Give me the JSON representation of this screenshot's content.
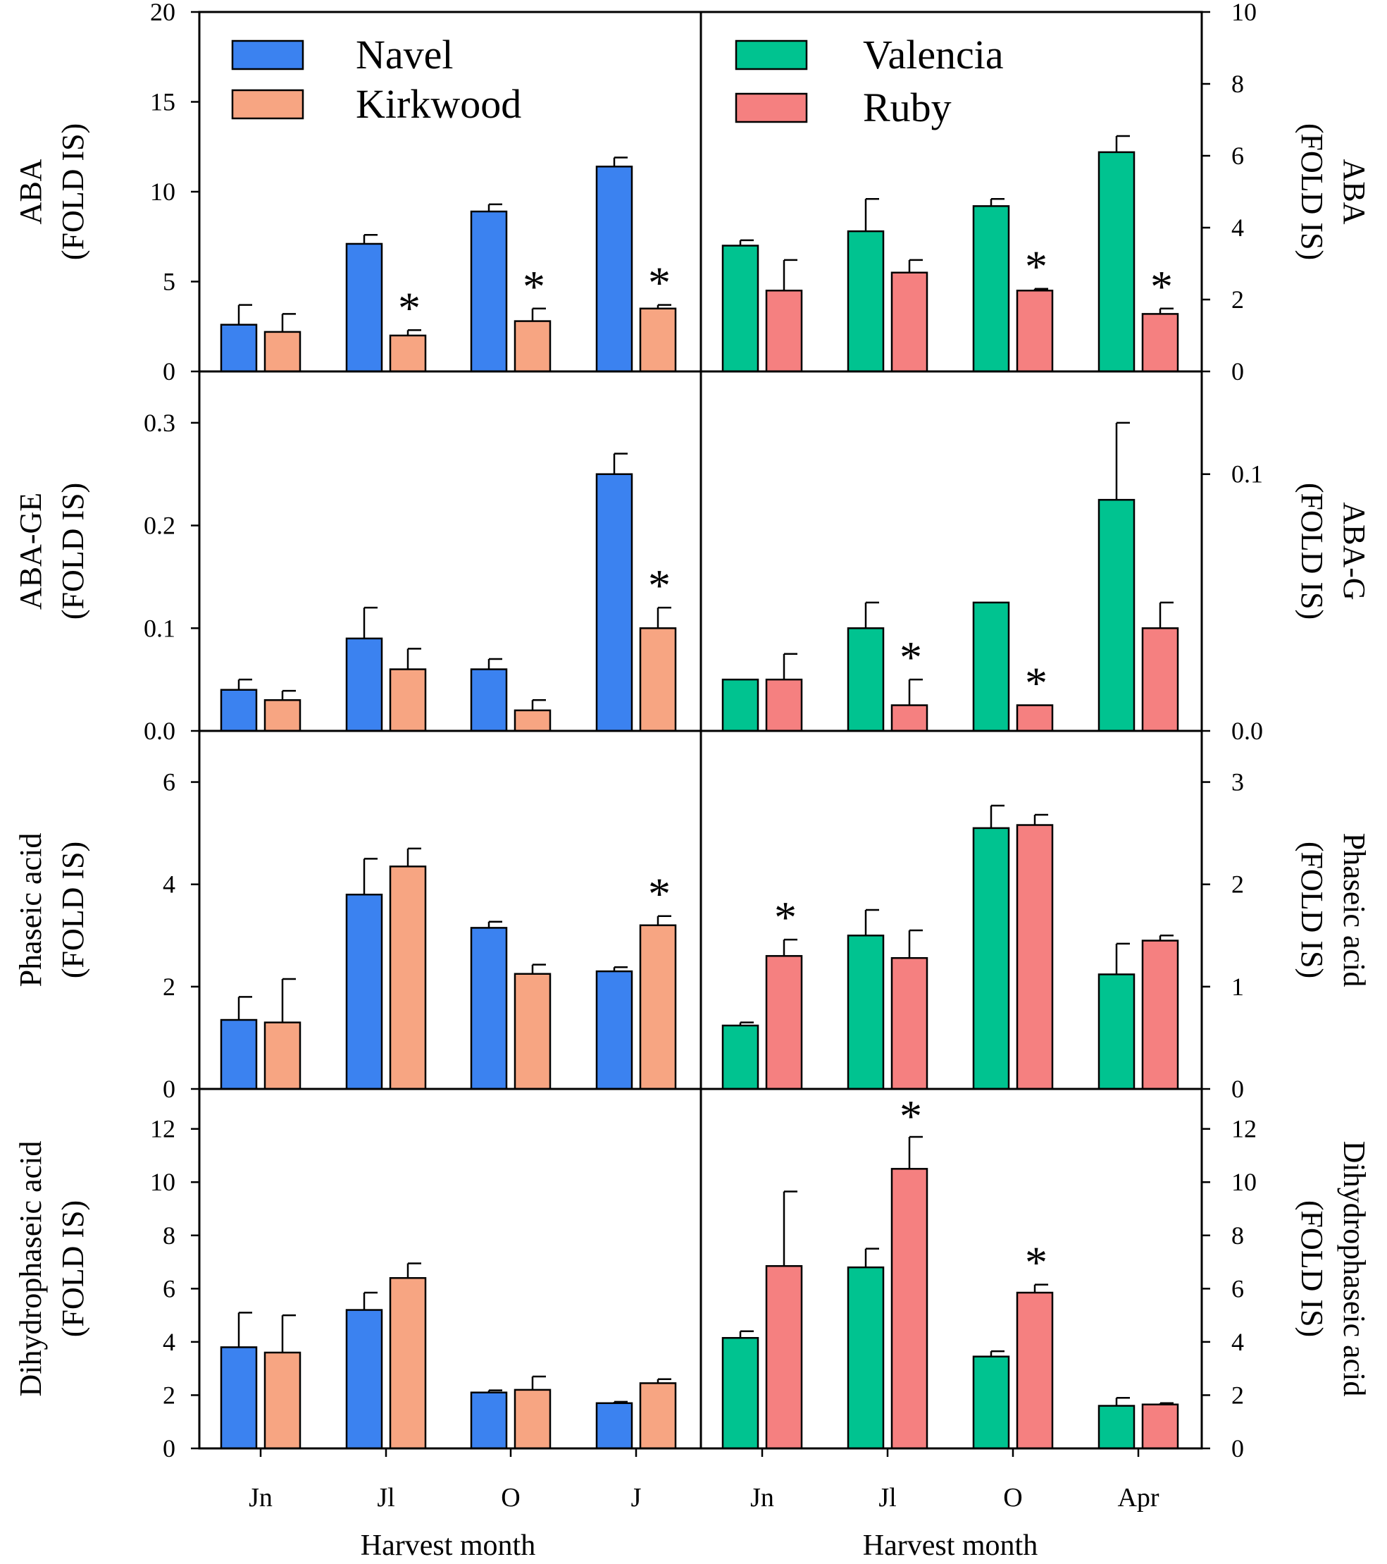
{
  "colors": {
    "Navel": "#3b82f0",
    "Kirkwood": "#f7a582",
    "Valencia": "#00c390",
    "Ruby": "#f58080",
    "axis": "#000000"
  },
  "chart_data": [
    {
      "type": "bar",
      "panel": "left",
      "row": 0,
      "ylabel": [
        "ABA",
        "(FOLD IS)"
      ],
      "ylim": [
        0,
        20
      ],
      "ticks": [
        0,
        5,
        10,
        15,
        20
      ],
      "tick_labels": [
        "0",
        "5",
        "10",
        "15",
        "20"
      ],
      "categories": [
        "Jn",
        "Jl",
        "O",
        "J"
      ],
      "series": [
        {
          "name": "Navel",
          "values": [
            2.6,
            7.1,
            8.9,
            11.4
          ],
          "errors": [
            1.1,
            0.5,
            0.4,
            0.5
          ]
        },
        {
          "name": "Kirkwood",
          "values": [
            2.2,
            2.0,
            2.8,
            3.5
          ],
          "errors": [
            1.0,
            0.3,
            0.7,
            0.2
          ]
        }
      ],
      "significance": [
        false,
        true,
        true,
        true
      ]
    },
    {
      "type": "bar",
      "panel": "right",
      "row": 0,
      "ylabel": [
        "ABA",
        "(FOLD IS)"
      ],
      "ylim": [
        0,
        10
      ],
      "ticks": [
        0,
        2,
        4,
        6,
        8,
        10
      ],
      "tick_labels": [
        "0",
        "2",
        "4",
        "6",
        "8",
        "10"
      ],
      "categories": [
        "Jn",
        "Jl",
        "O",
        "Apr"
      ],
      "series": [
        {
          "name": "Valencia",
          "values": [
            3.5,
            3.9,
            4.6,
            6.1
          ],
          "errors": [
            0.15,
            0.9,
            0.2,
            0.45
          ]
        },
        {
          "name": "Ruby",
          "values": [
            2.25,
            2.75,
            2.25,
            1.6
          ],
          "errors": [
            0.85,
            0.35,
            0.05,
            0.15
          ]
        }
      ],
      "significance": [
        false,
        false,
        true,
        true
      ]
    },
    {
      "type": "bar",
      "panel": "left",
      "row": 1,
      "ylabel": [
        "ABA-GE",
        "(FOLD IS)"
      ],
      "ylim": [
        0,
        0.35
      ],
      "ticks": [
        0,
        0.1,
        0.2,
        0.3
      ],
      "tick_labels": [
        "0.0",
        "0.1",
        "0.2",
        "0.3"
      ],
      "categories": [
        "Jn",
        "Jl",
        "O",
        "J"
      ],
      "series": [
        {
          "name": "Navel",
          "values": [
            0.04,
            0.09,
            0.06,
            0.25
          ],
          "errors": [
            0.01,
            0.03,
            0.01,
            0.02
          ]
        },
        {
          "name": "Kirkwood",
          "values": [
            0.03,
            0.06,
            0.02,
            0.1
          ],
          "errors": [
            0.009,
            0.02,
            0.01,
            0.02
          ]
        }
      ],
      "significance": [
        false,
        false,
        false,
        true
      ]
    },
    {
      "type": "bar",
      "panel": "right",
      "row": 1,
      "ylabel": [
        "ABA-G",
        "(FOLD IS)"
      ],
      "ylim": [
        0,
        0.14
      ],
      "ticks": [
        0,
        0.1
      ],
      "tick_labels": [
        "0.0",
        "0.1"
      ],
      "categories": [
        "Jn",
        "Jl",
        "O",
        "Apr"
      ],
      "series": [
        {
          "name": "Valencia",
          "values": [
            0.02,
            0.04,
            0.05,
            0.09
          ],
          "errors": [
            0,
            0.01,
            0,
            0.03
          ]
        },
        {
          "name": "Ruby",
          "values": [
            0.02,
            0.01,
            0.01,
            0.04
          ],
          "errors": [
            0.01,
            0.01,
            0,
            0.01
          ]
        }
      ],
      "significance": [
        false,
        true,
        true,
        false
      ]
    },
    {
      "type": "bar",
      "panel": "left",
      "row": 2,
      "ylabel": [
        "Phaseic acid",
        "(FOLD IS)"
      ],
      "ylim": [
        0,
        7
      ],
      "ticks": [
        0,
        2,
        4,
        6
      ],
      "tick_labels": [
        "0",
        "2",
        "4",
        "6"
      ],
      "categories": [
        "Jn",
        "Jl",
        "O",
        "J"
      ],
      "series": [
        {
          "name": "Navel",
          "values": [
            1.35,
            3.8,
            3.15,
            2.3
          ],
          "errors": [
            0.45,
            0.7,
            0.12,
            0.08
          ]
        },
        {
          "name": "Kirkwood",
          "values": [
            1.3,
            4.35,
            2.25,
            3.2
          ],
          "errors": [
            0.85,
            0.35,
            0.18,
            0.18
          ]
        }
      ],
      "significance": [
        false,
        false,
        false,
        true
      ]
    },
    {
      "type": "bar",
      "panel": "right",
      "row": 2,
      "ylabel": [
        "Phaseic acid",
        "(FOLD IS)"
      ],
      "ylim": [
        0,
        3.5
      ],
      "ticks": [
        0,
        1,
        2,
        3
      ],
      "tick_labels": [
        "0",
        "1",
        "2",
        "3"
      ],
      "categories": [
        "Jn",
        "Jl",
        "O",
        "Apr"
      ],
      "series": [
        {
          "name": "Valencia",
          "values": [
            0.62,
            1.5,
            2.55,
            1.12
          ],
          "errors": [
            0.03,
            0.25,
            0.22,
            0.3
          ]
        },
        {
          "name": "Ruby",
          "values": [
            1.3,
            1.28,
            2.58,
            1.45
          ],
          "errors": [
            0.16,
            0.27,
            0.1,
            0.05
          ]
        }
      ],
      "significance": [
        true,
        false,
        false,
        false
      ]
    },
    {
      "type": "bar",
      "panel": "left",
      "row": 3,
      "ylabel": [
        "Dihydrophaseic acid",
        "(FOLD IS)"
      ],
      "ylim": [
        0,
        13.5
      ],
      "ticks": [
        0,
        2,
        4,
        6,
        8,
        10,
        12
      ],
      "tick_labels": [
        "0",
        "2",
        "4",
        "6",
        "8",
        "10",
        "12"
      ],
      "categories": [
        "Jn",
        "Jl",
        "O",
        "J"
      ],
      "series": [
        {
          "name": "Navel",
          "values": [
            3.8,
            5.2,
            2.1,
            1.7
          ],
          "errors": [
            1.3,
            0.65,
            0.08,
            0.05
          ]
        },
        {
          "name": "Kirkwood",
          "values": [
            3.6,
            6.4,
            2.2,
            2.45
          ],
          "errors": [
            1.4,
            0.55,
            0.5,
            0.15
          ]
        }
      ],
      "significance": [
        false,
        false,
        false,
        false
      ]
    },
    {
      "type": "bar",
      "panel": "right",
      "row": 3,
      "ylabel": [
        "Dihydrophaseic acid",
        "(FOLD IS)"
      ],
      "ylim": [
        0,
        13.5
      ],
      "ticks": [
        0,
        2,
        4,
        6,
        8,
        10,
        12
      ],
      "tick_labels": [
        "0",
        "2",
        "4",
        "6",
        "8",
        "10",
        "12"
      ],
      "categories": [
        "Jn",
        "Jl",
        "O",
        "Apr"
      ],
      "series": [
        {
          "name": "Valencia",
          "values": [
            4.15,
            6.8,
            3.45,
            1.6
          ],
          "errors": [
            0.25,
            0.7,
            0.2,
            0.3
          ]
        },
        {
          "name": "Ruby",
          "values": [
            6.85,
            10.5,
            5.85,
            1.65
          ],
          "errors": [
            2.8,
            1.2,
            0.3,
            0.05
          ]
        }
      ],
      "significance": [
        false,
        true,
        true,
        false
      ]
    }
  ],
  "legend": {
    "left": [
      "Navel",
      "Kirkwood"
    ],
    "right": [
      "Valencia",
      "Ruby"
    ]
  },
  "xaxis": {
    "left_categories": [
      "Jn",
      "Jl",
      "O",
      "J"
    ],
    "right_categories": [
      "Jn",
      "Jl",
      "O",
      "Apr"
    ],
    "left_label": "Harvest month",
    "right_label": "Harvest month"
  },
  "significance_mark": "*"
}
